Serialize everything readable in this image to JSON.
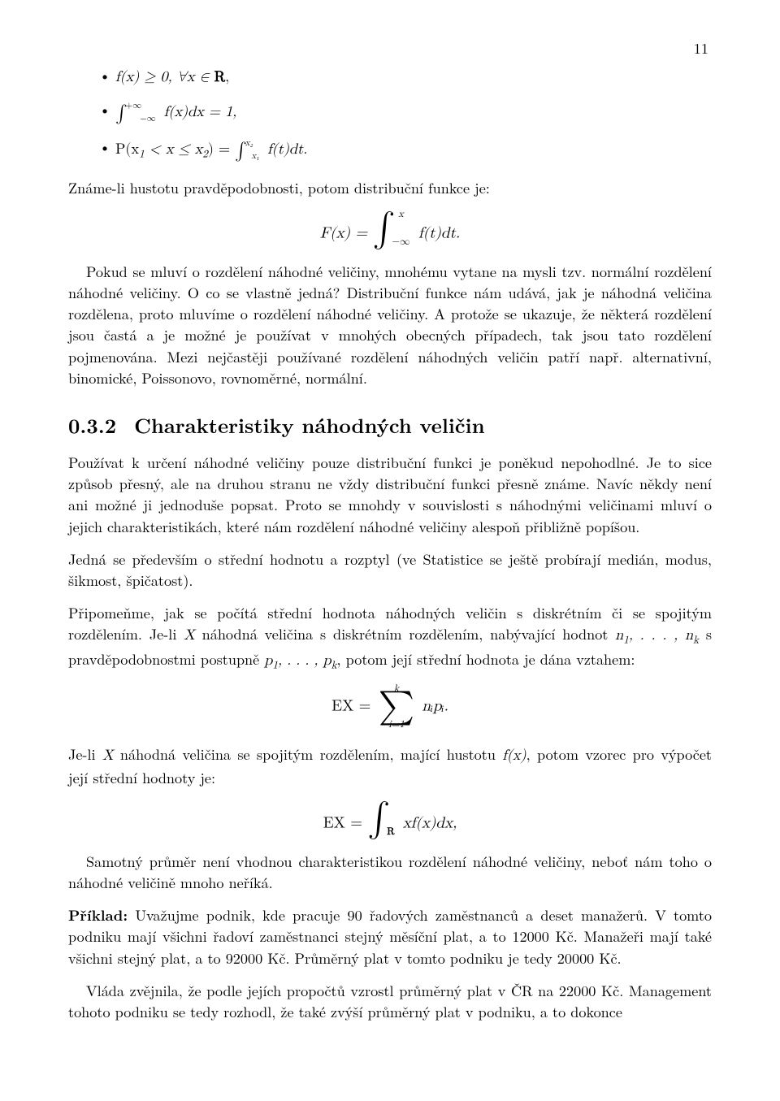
{
  "page_number": "11",
  "bullets": {
    "b1": "f(x) ≥ 0, ∀x ∈",
    "b1r": "R",
    "b1end": ",",
    "b2_pre": "∫",
    "b2_up": "+∞",
    "b2_lo": "−∞",
    "b2_body": " f(x)dx = 1,",
    "b3_pre": "P(x",
    "b3_mid": " < x ≤ x",
    "b3_post": ") = ",
    "b3_int": "∫",
    "b3_up": "x₂",
    "b3_lo": "x₁",
    "b3_body": " f(t)dt."
  },
  "intro": "Známe-li hustotu pravděpodobnosti, potom distribuční funkce je:",
  "eq1": {
    "lhs": "F(x) = ",
    "int": "∫",
    "upper": "x",
    "lower": "−∞",
    "body": " f(t)dt."
  },
  "p1": "Pokud se mluví o rozdělení náhodné veličiny, mnohému vytane na mysli tzv. normální rozdělení náhodné veličiny. O co se vlastně jedná? Distribuční funkce nám udává, jak je náhodná veličina rozdělena, proto mluvíme o rozdělení náhodné veličiny. A protože se ukazuje, že některá rozdělení jsou častá a je možné je používat v mnohých obecných případech, tak jsou tato rozdělení pojmenována. Mezi nejčastěji používané rozdělení náhodných veličin patří např. alternativní, binomické, Poissonovo, rovnoměrné, normální.",
  "section": {
    "num": "0.3.2",
    "title": "Charakteristiky náhodných veličin"
  },
  "p2": "Používat k určení náhodné veličiny pouze distribuční funkci je poněkud nepohodlné. Je to sice způsob přesný, ale na druhou stranu ne vždy distribuční funkci přesně známe. Navíc někdy není ani možné ji jednoduše popsat. Proto se mnohdy v souvislosti s náhodnými veličinami mluví o jejich charakteristikách, které nám rozdělení náhodné veličiny alespoň přibližně popíšou.",
  "p3": "Jedná se především o střední hodnotu a rozptyl (ve Statistice se ještě probírají medián, modus, šikmost, špičatost).",
  "p4a": "Připomeňme, jak se počítá střední hodnota náhodných veličin s diskrétním či se spojitým rozdělením. Je-li ",
  "p4b": " náhodná veličina s diskrétním rozdělením, nabývající hodnot ",
  "p4c": " s pravděpodobnostmi postupně ",
  "p4d": ", potom její střední hodnota je dána vztahem:",
  "eq2": {
    "lhs": "EX = ",
    "upper": "k",
    "sum": "∑",
    "lower": "i=1",
    "body": " nᵢpᵢ."
  },
  "p5a": "Je-li ",
  "p5b": " náhodná veličina se spojitým rozdělením, mající hustotu ",
  "p5c": ", potom vzorec pro výpočet její střední hodnoty je:",
  "eq3": {
    "lhs": "EX = ",
    "int": "∫",
    "sub": "R",
    "body": " xf(x)dx,"
  },
  "p6": "Samotný průměr není vhodnou charakteristikou rozdělení náhodné veličiny, neboť nám toho o náhodné veličině mnoho neříká.",
  "p7_label": "Příklad:",
  "p7": " Uvažujme podnik, kde pracuje 90 řadových zaměstnanců a deset manažerů. V tomto podniku mají všichni řadoví zaměstnanci stejný měsíční plat, a to 12000 Kč. Manažeři mají také všichni stejný plat, a to 92000 Kč. Průměrný plat v tomto podniku je tedy 20000 Kč.",
  "p8": "Vláda zvějnila, že podle jejích propočtů vzrostl průměrný plat v ČR na 22000 Kč. Management tohoto podniku se tedy rozhodl, že také zvýší průměrný plat v podniku, a to dokonce"
}
